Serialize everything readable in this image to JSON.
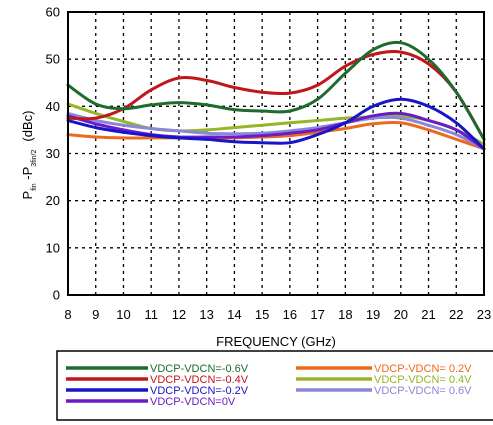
{
  "chart_data": {
    "type": "line",
    "xlabel": "FREQUENCY (GHz)",
    "ylabel": {
      "main_a": "P",
      "sub_a": "fin",
      "main_b": " -P",
      "sub_b": "3fin/2",
      "unit": "(dBc)"
    },
    "xlim": [
      8,
      23
    ],
    "ylim": [
      0,
      60
    ],
    "xticks": [
      8,
      9,
      10,
      11,
      12,
      13,
      14,
      15,
      16,
      17,
      18,
      19,
      20,
      21,
      22,
      23
    ],
    "yticks": [
      0,
      10,
      20,
      30,
      40,
      50,
      60
    ],
    "grid": true,
    "grid_style": "dashed",
    "legend_placement": "bottom",
    "x": [
      8,
      9,
      10,
      11,
      12,
      13,
      14,
      15,
      16,
      17,
      18,
      19,
      20,
      21,
      22,
      23
    ],
    "series": [
      {
        "name": "VDCP-VDCN=-0.6V",
        "color": "#1e6b2e",
        "values": [
          44.5,
          40.5,
          39.5,
          40.3,
          40.8,
          40.3,
          39.3,
          39,
          39,
          41.5,
          47,
          52,
          53.5,
          50,
          43,
          33
        ]
      },
      {
        "name": "VDCP-VDCN=-0.4V",
        "color": "#c0161e",
        "values": [
          37.5,
          37.5,
          39.5,
          43.5,
          46,
          45.5,
          44,
          43,
          42.8,
          44.5,
          48.5,
          51,
          51.5,
          49,
          43,
          33
        ]
      },
      {
        "name": "VDCP-VDCN=-0.2V",
        "color": "#1616c8",
        "values": [
          37,
          35.5,
          34.5,
          33.8,
          33.3,
          33,
          32.5,
          32.3,
          32.3,
          34,
          36.5,
          40,
          41.5,
          40,
          36.5,
          31
        ]
      },
      {
        "name": "VDCP-VDCN=0V",
        "color": "#6a1cc8",
        "values": [
          38,
          36.3,
          35,
          34,
          33.5,
          33.5,
          33.5,
          33.8,
          34.3,
          35,
          36.5,
          38,
          38.5,
          37,
          35,
          31
        ]
      },
      {
        "name": "VDCP-VDCN= 0.2V",
        "color": "#ee6a1a",
        "values": [
          34,
          33.5,
          33.3,
          33.3,
          33.3,
          33.3,
          33.3,
          33.5,
          33.8,
          34.5,
          35.3,
          36.3,
          36.5,
          35,
          33,
          31
        ]
      },
      {
        "name": "VDCP-VDCN= 0.4V",
        "color": "#95b52a",
        "values": [
          40.5,
          38.5,
          36.8,
          35.3,
          34.8,
          35,
          35.5,
          36,
          36.5,
          37,
          37.5,
          37.8,
          38,
          37,
          35,
          32
        ]
      },
      {
        "name": "VDCP-VDCN= 0.6V",
        "color": "#8a86d8",
        "values": [
          38.5,
          37,
          36,
          35.3,
          34.8,
          34.3,
          34.2,
          34.3,
          34.8,
          35.5,
          36.5,
          37.5,
          37.5,
          36,
          34,
          31
        ]
      }
    ]
  }
}
